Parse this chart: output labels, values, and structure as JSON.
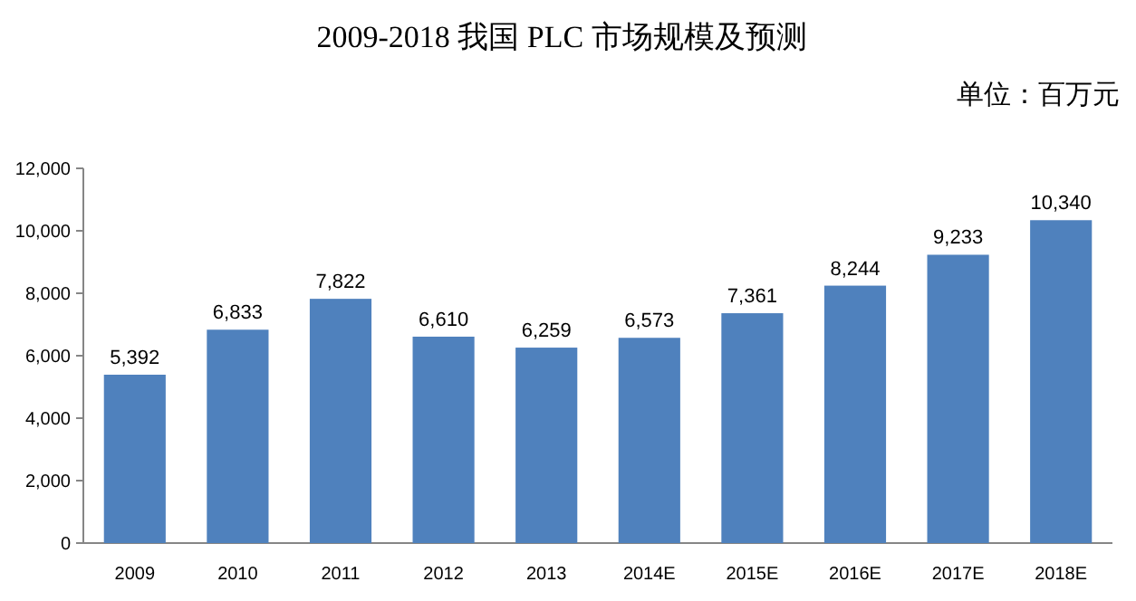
{
  "chart_data": {
    "type": "bar",
    "title": "2009-2018 我国 PLC 市场规模及预测",
    "annotations": [
      "单位：百万元"
    ],
    "categories": [
      "2009",
      "2010",
      "2011",
      "2012",
      "2013",
      "2014E",
      "2015E",
      "2016E",
      "2017E",
      "2018E"
    ],
    "series": [
      {
        "color": "#4f81bd",
        "values": [
          5392,
          6833,
          7822,
          6610,
          6259,
          6573,
          7361,
          8244,
          9233,
          10340
        ],
        "value_labels": [
          "5,392",
          "6,833",
          "7,822",
          "6,610",
          "6,259",
          "6,573",
          "7,361",
          "8,244",
          "9,233",
          "10,340"
        ]
      }
    ],
    "ylim": [
      0,
      12000
    ],
    "yticks": [
      0,
      {
        "value": 2000,
        "label": "2,000"
      },
      {
        "value": 4000,
        "label": "4,000"
      },
      {
        "value": 6000,
        "label": "6,000"
      },
      {
        "value": 8000,
        "label": "8,000"
      },
      {
        "value": 10000,
        "label": "10,000"
      },
      {
        "value": 12000,
        "label": "12,000"
      }
    ],
    "grid": false
  }
}
